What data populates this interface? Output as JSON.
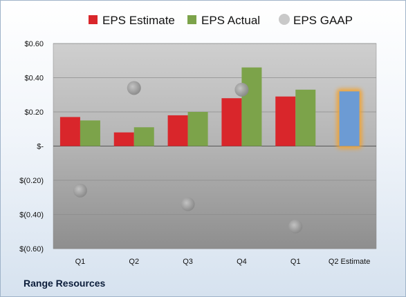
{
  "chart_data": {
    "type": "bar",
    "categories": [
      "Q1",
      "Q2",
      "Q3",
      "Q4",
      "Q1",
      "Q2 Estimate"
    ],
    "series": [
      {
        "name": "EPS Estimate",
        "kind": "bar",
        "color": "#d9262b",
        "values": [
          0.17,
          0.08,
          0.18,
          0.28,
          0.29,
          null
        ]
      },
      {
        "name": "EPS Actual",
        "kind": "bar",
        "color": "#7ca34a",
        "values": [
          0.15,
          0.11,
          0.2,
          0.46,
          0.33,
          null
        ]
      },
      {
        "name": "EPS GAAP",
        "kind": "scatter",
        "color": "#a6a6a6",
        "values": [
          -0.26,
          0.34,
          -0.34,
          0.33,
          -0.47,
          null
        ]
      }
    ],
    "q2_estimate": {
      "value": 0.32,
      "color": "#6c9bd4",
      "glow_color": "#f4a12c"
    },
    "ylim": [
      -0.6,
      0.6
    ],
    "yticks": [
      0.6,
      0.4,
      0.2,
      0,
      -0.2,
      -0.4,
      -0.6
    ],
    "ytick_labels": [
      "$0.60",
      "$0.40",
      "$0.20",
      "$-",
      "$(0.20)",
      "$(0.40)",
      "$(0.60)"
    ],
    "legend_position": "top",
    "grid": true
  },
  "footer": {
    "company": "Range Resources"
  }
}
